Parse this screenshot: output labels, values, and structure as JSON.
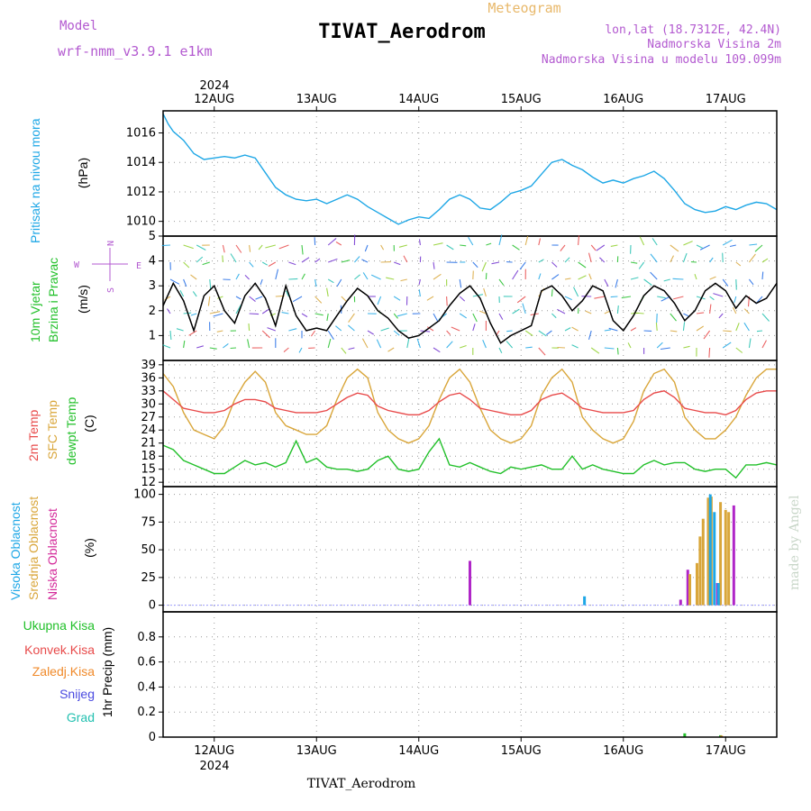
{
  "header": {
    "model_label": "Model",
    "model_name": "wrf-nmm_v3.9.1  e1km",
    "title": "TIVAT_Aerodrom",
    "meteogram_label": "Meteogram",
    "location_line1": "lon,lat (18.7312E, 42.4N)",
    "location_line2": "Nadmorska Visina 2m",
    "location_line3": "Nadmorska Visina u modelu 109.099m",
    "year_top": "2024",
    "year_bottom": "2024",
    "footer_title": "TIVAT_Aerodrom",
    "credit": "made by Angel"
  },
  "colors": {
    "pressure": "#1ea7e6",
    "wind_speed": "#000000",
    "temp_2m": "#e84a4a",
    "temp_sfc": "#d9a63a",
    "dewpoint": "#22c02a",
    "cloud_high": "#1ea7e6",
    "cloud_mid": "#d9a63a",
    "cloud_low": "#b026c8",
    "precip_total": "#22c02a",
    "precip_conv": "#e84a4a",
    "precip_snow": "#4a4ae0",
    "precip_graupel": "#22c0b0",
    "precip_freezing": "#f08a2a"
  },
  "compass": {
    "north": "N",
    "south": "S",
    "east": "E",
    "west": "W"
  },
  "chart_data": [
    {
      "type": "line",
      "id": "pressure",
      "ylabel_lines": [
        "Pritisak na nivou mora"
      ],
      "unit": "(hPa)",
      "x_categories": [
        "12AUG",
        "13AUG",
        "14AUG",
        "15AUG",
        "16AUG",
        "17AUG"
      ],
      "x_range_days": [
        11.5,
        17.5
      ],
      "ylim": [
        1009,
        1017.5
      ],
      "yticks": [
        1010,
        1012,
        1014,
        1016
      ],
      "grid": true,
      "series": [
        {
          "color_key": "pressure",
          "x": [
            11.5,
            11.55,
            11.6,
            11.7,
            11.8,
            11.9,
            12.0,
            12.1,
            12.2,
            12.3,
            12.4,
            12.5,
            12.6,
            12.7,
            12.8,
            12.9,
            13.0,
            13.1,
            13.2,
            13.3,
            13.4,
            13.5,
            13.6,
            13.7,
            13.8,
            13.9,
            14.0,
            14.1,
            14.2,
            14.3,
            14.4,
            14.5,
            14.6,
            14.7,
            14.8,
            14.9,
            15.0,
            15.1,
            15.2,
            15.3,
            15.4,
            15.5,
            15.6,
            15.7,
            15.8,
            15.9,
            16.0,
            16.1,
            16.2,
            16.3,
            16.4,
            16.5,
            16.6,
            16.7,
            16.8,
            16.9,
            17.0,
            17.1,
            17.2,
            17.3,
            17.4,
            17.5
          ],
          "y": [
            1017.3,
            1016.6,
            1016.1,
            1015.5,
            1014.6,
            1014.2,
            1014.3,
            1014.4,
            1014.3,
            1014.5,
            1014.3,
            1013.3,
            1012.3,
            1011.8,
            1011.5,
            1011.4,
            1011.5,
            1011.2,
            1011.5,
            1011.8,
            1011.5,
            1011.0,
            1010.6,
            1010.2,
            1009.8,
            1010.1,
            1010.3,
            1010.2,
            1010.8,
            1011.5,
            1011.8,
            1011.5,
            1010.9,
            1010.8,
            1011.3,
            1011.9,
            1012.1,
            1012.4,
            1013.2,
            1014.0,
            1014.2,
            1013.8,
            1013.5,
            1013.0,
            1012.6,
            1012.8,
            1012.6,
            1012.9,
            1013.1,
            1013.4,
            1012.9,
            1012.1,
            1011.2,
            1010.8,
            1010.6,
            1010.7,
            1011.0,
            1010.8,
            1011.1,
            1011.3,
            1011.2,
            1010.8
          ]
        }
      ]
    },
    {
      "type": "line",
      "id": "wind",
      "ylabel_lines": [
        "10m  Vjetar",
        "Brzina i Pravac"
      ],
      "unit": "(m/s)",
      "ylim": [
        0,
        5
      ],
      "yticks": [
        1,
        2,
        3,
        4,
        5
      ],
      "grid": true,
      "series": [
        {
          "color_key": "wind_speed",
          "x": [
            11.5,
            11.6,
            11.7,
            11.8,
            11.9,
            12.0,
            12.1,
            12.2,
            12.3,
            12.4,
            12.5,
            12.6,
            12.7,
            12.8,
            12.9,
            13.0,
            13.1,
            13.2,
            13.3,
            13.4,
            13.5,
            13.6,
            13.7,
            13.8,
            13.9,
            14.0,
            14.1,
            14.2,
            14.3,
            14.4,
            14.5,
            14.6,
            14.7,
            14.8,
            14.9,
            15.0,
            15.1,
            15.2,
            15.3,
            15.4,
            15.5,
            15.6,
            15.7,
            15.8,
            15.9,
            16.0,
            16.1,
            16.2,
            16.3,
            16.4,
            16.5,
            16.6,
            16.7,
            16.8,
            16.9,
            17.0,
            17.1,
            17.2,
            17.3,
            17.4,
            17.5
          ],
          "y": [
            2.2,
            3.1,
            2.4,
            1.2,
            2.6,
            3.0,
            2.0,
            1.5,
            2.6,
            3.1,
            2.5,
            1.4,
            3.0,
            1.8,
            1.2,
            1.3,
            1.2,
            1.8,
            2.4,
            2.9,
            2.6,
            2.0,
            1.7,
            1.2,
            0.9,
            1.0,
            1.3,
            1.6,
            2.2,
            2.7,
            3.0,
            2.5,
            1.5,
            0.7,
            1.0,
            1.2,
            1.4,
            2.8,
            3.0,
            2.6,
            2.0,
            2.4,
            3.0,
            2.8,
            1.6,
            1.2,
            1.8,
            2.6,
            3.0,
            2.8,
            2.3,
            1.6,
            2.0,
            2.8,
            3.1,
            2.8,
            2.1,
            2.6,
            2.3,
            2.5,
            3.1
          ]
        }
      ]
    },
    {
      "type": "line",
      "id": "temperature",
      "ylabel_lines": [
        "2m Temp",
        "SFC Temp",
        "dewpt Temp"
      ],
      "unit": "(C)",
      "ylim": [
        11,
        40
      ],
      "yticks": [
        12,
        15,
        18,
        21,
        24,
        27,
        30,
        33,
        36,
        39
      ],
      "grid": true,
      "series": [
        {
          "color_key": "temp_sfc",
          "x": [
            11.5,
            11.6,
            11.7,
            11.8,
            11.9,
            12.0,
            12.1,
            12.2,
            12.3,
            12.4,
            12.5,
            12.6,
            12.7,
            12.8,
            12.9,
            13.0,
            13.1,
            13.2,
            13.3,
            13.4,
            13.5,
            13.6,
            13.7,
            13.8,
            13.9,
            14.0,
            14.1,
            14.2,
            14.3,
            14.4,
            14.5,
            14.6,
            14.7,
            14.8,
            14.9,
            15.0,
            15.1,
            15.2,
            15.3,
            15.4,
            15.5,
            15.6,
            15.7,
            15.8,
            15.9,
            16.0,
            16.1,
            16.2,
            16.3,
            16.4,
            16.5,
            16.6,
            16.7,
            16.8,
            16.9,
            17.0,
            17.1,
            17.2,
            17.3,
            17.4,
            17.5
          ],
          "y": [
            37,
            34,
            28,
            24,
            23,
            22,
            25,
            31,
            35,
            37.5,
            35,
            28,
            25,
            24,
            23,
            23,
            25,
            31,
            36,
            38,
            36,
            28,
            24,
            22,
            21,
            22,
            25,
            31,
            36,
            38,
            35,
            29,
            24,
            22,
            21,
            22,
            25,
            32,
            36,
            38,
            35,
            27,
            24,
            22,
            21,
            22,
            26,
            33,
            37,
            38,
            35,
            27,
            24,
            22,
            22,
            24,
            27,
            32,
            36,
            38,
            38
          ]
        },
        {
          "color_key": "temp_2m",
          "x": [
            11.5,
            11.6,
            11.7,
            11.8,
            11.9,
            12.0,
            12.1,
            12.2,
            12.3,
            12.4,
            12.5,
            12.6,
            12.7,
            12.8,
            12.9,
            13.0,
            13.1,
            13.2,
            13.3,
            13.4,
            13.5,
            13.6,
            13.7,
            13.8,
            13.9,
            14.0,
            14.1,
            14.2,
            14.3,
            14.4,
            14.5,
            14.6,
            14.7,
            14.8,
            14.9,
            15.0,
            15.1,
            15.2,
            15.3,
            15.4,
            15.5,
            15.6,
            15.7,
            15.8,
            15.9,
            16.0,
            16.1,
            16.2,
            16.3,
            16.4,
            16.5,
            16.6,
            16.7,
            16.8,
            16.9,
            17.0,
            17.1,
            17.2,
            17.3,
            17.4,
            17.5
          ],
          "y": [
            33,
            31,
            29,
            28.5,
            28,
            28,
            28.5,
            30,
            31,
            31,
            30.5,
            29,
            28.5,
            28,
            28,
            28,
            28.5,
            30,
            31.5,
            32.5,
            32,
            29.5,
            28.5,
            28,
            27.5,
            27.5,
            28.5,
            30.5,
            32,
            32.5,
            31,
            29,
            28.5,
            28,
            27.5,
            27.5,
            28.5,
            31,
            32,
            32.5,
            31,
            29,
            28.5,
            28,
            28,
            28,
            28.5,
            31,
            32.5,
            33,
            31.5,
            29,
            28.5,
            28,
            28,
            27.5,
            28.5,
            31,
            32.5,
            33,
            33
          ]
        },
        {
          "color_key": "dewpoint",
          "x": [
            11.5,
            11.6,
            11.7,
            11.8,
            11.9,
            12.0,
            12.1,
            12.2,
            12.3,
            12.4,
            12.5,
            12.6,
            12.7,
            12.8,
            12.9,
            13.0,
            13.1,
            13.2,
            13.3,
            13.4,
            13.5,
            13.6,
            13.7,
            13.8,
            13.9,
            14.0,
            14.1,
            14.2,
            14.3,
            14.4,
            14.5,
            14.6,
            14.7,
            14.8,
            14.9,
            15.0,
            15.1,
            15.2,
            15.3,
            15.4,
            15.5,
            15.6,
            15.7,
            15.8,
            15.9,
            16.0,
            16.1,
            16.2,
            16.3,
            16.4,
            16.5,
            16.6,
            16.7,
            16.8,
            16.9,
            17.0,
            17.1,
            17.2,
            17.3,
            17.4,
            17.5
          ],
          "y": [
            20.5,
            19.5,
            17,
            16,
            15,
            14,
            14,
            15.5,
            17,
            16,
            16.5,
            15.5,
            16.5,
            21.5,
            16.5,
            17.5,
            15.5,
            15,
            15,
            14.5,
            15,
            17,
            18,
            15,
            14.5,
            15,
            19,
            22,
            16,
            15.5,
            16.5,
            15.5,
            14.5,
            14,
            15.5,
            15,
            15.5,
            16,
            15,
            15,
            18,
            15,
            16,
            15,
            14.5,
            14,
            14,
            16,
            17,
            16,
            16.5,
            16.5,
            15,
            14.5,
            15,
            15,
            13,
            16,
            16,
            16.5,
            16
          ]
        }
      ]
    },
    {
      "type": "bar",
      "id": "clouds",
      "ylabel_lines": [
        "Visoka  Oblacnost",
        "Srednja  Oblacnost",
        "Niska  Oblacnost"
      ],
      "unit": "(%)",
      "ylim": [
        -6,
        107
      ],
      "yticks": [
        0,
        25,
        50,
        75,
        100
      ],
      "grid": true,
      "series": [
        {
          "color_key": "cloud_low",
          "x": [
            14.5,
            16.56,
            16.63,
            16.92,
            17.08
          ],
          "values": [
            40,
            5,
            32,
            20,
            90
          ]
        },
        {
          "color_key": "cloud_mid",
          "x": [
            16.65,
            16.72,
            16.75,
            16.78,
            16.83,
            16.86,
            16.95,
            17.0,
            17.03
          ],
          "values": [
            28,
            38,
            62,
            78,
            97,
            98,
            93,
            86,
            84
          ]
        },
        {
          "color_key": "cloud_high",
          "x": [
            15.62,
            16.85,
            16.89,
            16.93
          ],
          "values": [
            8,
            100,
            84,
            20
          ]
        }
      ]
    },
    {
      "type": "bar",
      "id": "precip",
      "legend": [
        "Ukupna  Kisa",
        "Konvek.Kisa",
        "Zaledj.Kisa",
        "Snijeg",
        "Grad"
      ],
      "unit": "1hr Precip (mm)",
      "ylim": [
        0,
        1.0
      ],
      "yticks": [
        0,
        0.2,
        0.4,
        0.6,
        0.8
      ],
      "grid": true,
      "series": [
        {
          "color_key": "precip_total",
          "x": [
            16.6,
            16.95
          ],
          "values": [
            0.03,
            0.015
          ]
        },
        {
          "color_key": "precip_freezing",
          "x": [
            16.96
          ],
          "values": [
            0.012
          ]
        }
      ]
    }
  ]
}
